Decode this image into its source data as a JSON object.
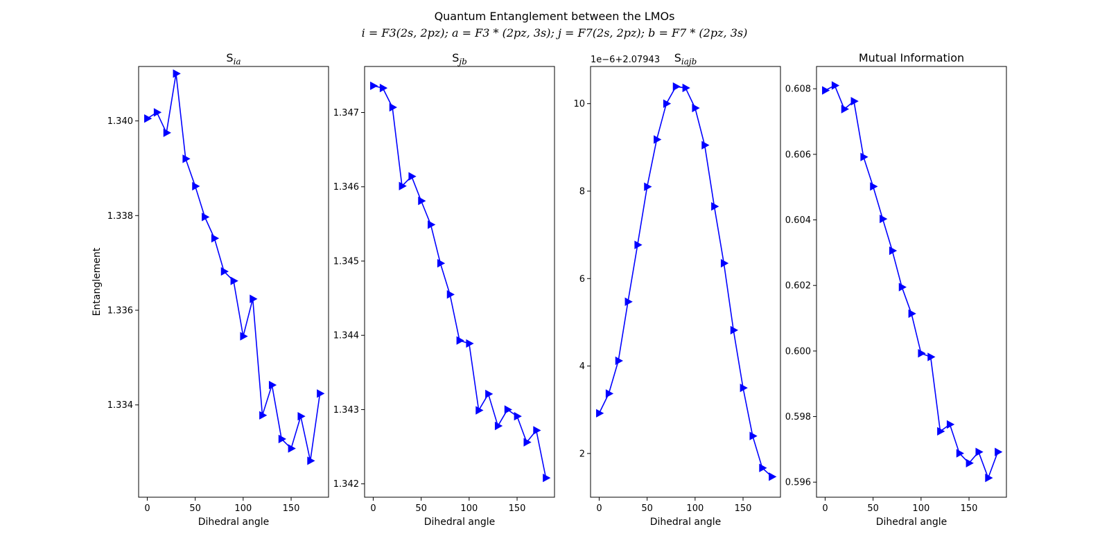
{
  "figure": {
    "title_line1": "Quantum Entanglement between the LMOs",
    "title_line2": "i = F3(2s, 2pz); a = F3 * (2pz, 3s); j = F7(2s, 2pz); b = F7 * (2pz, 3s)"
  },
  "chart_data": [
    {
      "type": "line",
      "title": "S",
      "title_sub": "ia",
      "xlabel": "Dihedral angle",
      "ylabel": "Entanglement",
      "offset_text": "",
      "x": [
        0,
        10,
        20,
        30,
        40,
        50,
        60,
        70,
        80,
        90,
        100,
        110,
        120,
        130,
        140,
        150,
        160,
        170,
        180
      ],
      "xlim": [
        -9,
        189
      ],
      "xticks": [
        0,
        50,
        100,
        150
      ],
      "xtick_labels": [
        "0",
        "50",
        "100",
        "150"
      ],
      "ylim": [
        1.33205,
        1.34115
      ],
      "yticks": [
        1.334,
        1.336,
        1.338,
        1.34
      ],
      "ytick_labels": [
        "1.334",
        "1.336",
        "1.338",
        "1.340"
      ],
      "series": [
        {
          "color": "#0000ff",
          "marker": "triangle-right",
          "values": [
            1.34005,
            1.34018,
            1.33975,
            1.341,
            1.3392,
            1.33862,
            1.33797,
            1.33752,
            1.33682,
            1.33662,
            1.33545,
            1.33624,
            1.33378,
            1.33442,
            1.33328,
            1.33308,
            1.33376,
            1.33282,
            1.33424
          ]
        }
      ],
      "grid": false
    },
    {
      "type": "line",
      "title": "S",
      "title_sub": "jb",
      "xlabel": "Dihedral angle",
      "ylabel": "",
      "offset_text": "",
      "x": [
        0,
        10,
        20,
        30,
        40,
        50,
        60,
        70,
        80,
        90,
        100,
        110,
        120,
        130,
        140,
        150,
        160,
        170,
        180
      ],
      "xlim": [
        -9,
        189
      ],
      "xticks": [
        0,
        50,
        100,
        150
      ],
      "xtick_labels": [
        "0",
        "50",
        "100",
        "150"
      ],
      "ylim": [
        1.34182,
        1.34762
      ],
      "yticks": [
        1.342,
        1.343,
        1.344,
        1.345,
        1.346,
        1.347
      ],
      "ytick_labels": [
        "1.342",
        "1.343",
        "1.344",
        "1.345",
        "1.346",
        "1.347"
      ],
      "series": [
        {
          "color": "#0000ff",
          "marker": "triangle-right",
          "values": [
            1.34736,
            1.34733,
            1.34707,
            1.34601,
            1.34614,
            1.34581,
            1.34549,
            1.34497,
            1.34455,
            1.34393,
            1.34389,
            1.34299,
            1.34321,
            1.34278,
            1.343,
            1.34291,
            1.34256,
            1.34272,
            1.34208
          ]
        }
      ],
      "grid": false
    },
    {
      "type": "line",
      "title": "S",
      "title_sub": "iajb",
      "xlabel": "Dihedral angle",
      "ylabel": "",
      "offset_text": "1e−6+2.07943",
      "x": [
        0,
        10,
        20,
        30,
        40,
        50,
        60,
        70,
        80,
        90,
        100,
        110,
        120,
        130,
        140,
        150,
        160,
        170,
        180
      ],
      "xlim": [
        -9,
        189
      ],
      "xticks": [
        0,
        50,
        100,
        150
      ],
      "xtick_labels": [
        "0",
        "50",
        "100",
        "150"
      ],
      "ylim": [
        1.0,
        10.85
      ],
      "yticks": [
        2,
        4,
        6,
        8,
        10
      ],
      "ytick_labels": [
        "2",
        "4",
        "6",
        "8",
        "10"
      ],
      "series": [
        {
          "color": "#0000ff",
          "marker": "triangle-right",
          "values": [
            2.92,
            3.37,
            4.12,
            5.47,
            6.77,
            8.1,
            9.18,
            10.0,
            10.39,
            10.36,
            9.9,
            9.05,
            7.65,
            6.35,
            4.82,
            3.5,
            2.4,
            1.67,
            1.47
          ]
        }
      ],
      "grid": false
    },
    {
      "type": "line",
      "title": "Mutual Information",
      "title_sub": "",
      "xlabel": "Dihedral angle",
      "ylabel": "",
      "offset_text": "",
      "x": [
        0,
        10,
        20,
        30,
        40,
        50,
        60,
        70,
        80,
        90,
        100,
        110,
        120,
        130,
        140,
        150,
        160,
        170,
        180
      ],
      "xlim": [
        -9,
        189
      ],
      "xticks": [
        0,
        50,
        100,
        150
      ],
      "xtick_labels": [
        "0",
        "50",
        "100",
        "150"
      ],
      "ylim": [
        0.59554,
        0.60868
      ],
      "yticks": [
        0.596,
        0.598,
        0.6,
        0.602,
        0.604,
        0.606,
        0.608
      ],
      "ytick_labels": [
        "0.596",
        "0.598",
        "0.600",
        "0.602",
        "0.604",
        "0.606",
        "0.608"
      ],
      "series": [
        {
          "color": "#0000ff",
          "marker": "triangle-right",
          "values": [
            0.60795,
            0.6081,
            0.60738,
            0.60762,
            0.60592,
            0.60502,
            0.60403,
            0.60306,
            0.60195,
            0.60114,
            0.59993,
            0.59982,
            0.59755,
            0.59776,
            0.59688,
            0.59658,
            0.59692,
            0.59613,
            0.59692
          ]
        }
      ],
      "grid": false
    }
  ]
}
